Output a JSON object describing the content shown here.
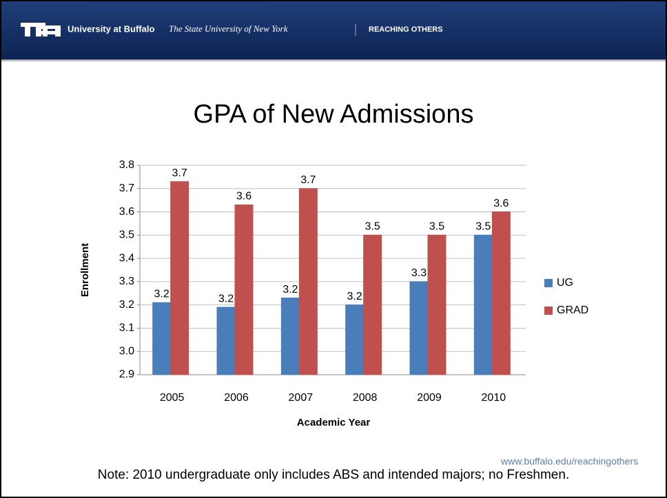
{
  "header": {
    "brand": "University at Buffalo",
    "subtitle": "The State University of New York",
    "tagline": "REACHING OTHERS"
  },
  "chart_data": {
    "type": "bar",
    "title": "GPA of New Admissions",
    "x_label": "Academic Year",
    "y_label": "Enrollment",
    "categories": [
      "2005",
      "2006",
      "2007",
      "2008",
      "2009",
      "2010"
    ],
    "series": [
      {
        "name": "UG",
        "color": "#4a7ebb",
        "values": [
          3.21,
          3.19,
          3.23,
          3.2,
          3.3,
          3.5
        ],
        "value_labels": [
          "3.2",
          "3.2",
          "3.2",
          "3.2",
          "3.3",
          "3.5"
        ]
      },
      {
        "name": "GRAD",
        "color": "#c0504d",
        "values": [
          3.73,
          3.63,
          3.7,
          3.5,
          3.5,
          3.6
        ],
        "value_labels": [
          "3.7",
          "3.6",
          "3.7",
          "3.5",
          "3.5",
          "3.6"
        ]
      }
    ],
    "ylim": [
      2.9,
      3.8
    ],
    "yticks": [
      2.9,
      {
        "value": 3,
        "label": "3.0"
      },
      3.1,
      3.2,
      3.3,
      3.4,
      3.5,
      3.6,
      3.7,
      3.8
    ],
    "grid": true,
    "legend": "right"
  },
  "footer": {
    "url": "www.buffalo.edu/reachingothers",
    "note": "Note:  2010 undergraduate only includes ABS and intended majors; no Freshmen."
  }
}
